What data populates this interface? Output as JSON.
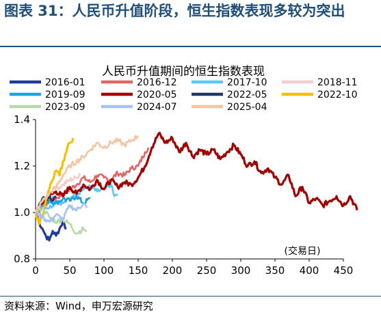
{
  "figure": {
    "title": "图表 31：人民币升值阶段，恒生指数表现多较为突出",
    "source": "资料来源：Wind，申万宏源研究"
  },
  "chart_data": {
    "type": "line",
    "title": "人民币升值期间的恒生指数表现",
    "xlabel": "(交易日)",
    "ylabel": "",
    "xlim": [
      0,
      450
    ],
    "ylim": [
      0.8,
      1.4
    ],
    "xticks": [
      "0",
      "50",
      "100",
      "150",
      "200",
      "250",
      "300",
      "350",
      "400",
      "450"
    ],
    "yticks": [
      "0.8",
      "1.0",
      "1.2",
      "1.4"
    ],
    "grid": false,
    "legend_position": "top",
    "series": [
      {
        "name": "2016-01",
        "color": "#1f3c99",
        "points": [
          [
            0,
            1.0
          ],
          [
            5,
            0.96
          ],
          [
            10,
            0.93
          ],
          [
            15,
            0.9
          ],
          [
            20,
            0.88
          ],
          [
            25,
            0.92
          ],
          [
            30,
            0.9
          ],
          [
            35,
            0.93
          ],
          [
            40,
            0.96
          ],
          [
            45,
            0.93
          ]
        ]
      },
      {
        "name": "2016-12",
        "color": "#e06666",
        "points": [
          [
            0,
            1.0
          ],
          [
            10,
            1.02
          ],
          [
            20,
            1.05
          ],
          [
            30,
            1.06
          ],
          [
            40,
            1.08
          ],
          [
            50,
            1.1
          ],
          [
            60,
            1.12
          ],
          [
            70,
            1.15
          ],
          [
            80,
            1.13
          ],
          [
            90,
            1.16
          ],
          [
            100,
            1.15
          ],
          [
            110,
            1.14
          ],
          [
            120,
            1.17
          ],
          [
            130,
            1.16
          ],
          [
            140,
            1.19
          ],
          [
            150,
            1.2
          ],
          [
            160,
            1.26
          ],
          [
            165,
            1.28
          ]
        ]
      },
      {
        "name": "2017-10",
        "color": "#5bc8f5",
        "points": [
          [
            0,
            1.0
          ],
          [
            10,
            1.03
          ],
          [
            20,
            1.02
          ],
          [
            30,
            1.05
          ],
          [
            40,
            1.04
          ],
          [
            50,
            1.06
          ],
          [
            60,
            1.08
          ],
          [
            70,
            1.1
          ],
          [
            80,
            1.11
          ],
          [
            90,
            1.09
          ],
          [
            100,
            1.1
          ],
          [
            110,
            1.12
          ],
          [
            115,
            1.07
          ],
          [
            120,
            1.08
          ]
        ]
      },
      {
        "name": "2018-11",
        "color": "#f4cccc",
        "points": [
          [
            0,
            1.0
          ],
          [
            10,
            1.04
          ],
          [
            20,
            1.07
          ],
          [
            30,
            1.1
          ],
          [
            40,
            1.12
          ],
          [
            50,
            1.14
          ],
          [
            60,
            1.15
          ],
          [
            65,
            1.17
          ]
        ]
      },
      {
        "name": "2019-09",
        "color": "#1aa3dc",
        "points": [
          [
            0,
            1.0
          ],
          [
            10,
            1.03
          ],
          [
            20,
            1.05
          ],
          [
            30,
            1.04
          ],
          [
            40,
            1.06
          ],
          [
            50,
            1.05
          ],
          [
            60,
            1.07
          ],
          [
            70,
            1.04
          ],
          [
            80,
            1.06
          ]
        ]
      },
      {
        "name": "2020-05",
        "color": "#a00000",
        "points": [
          [
            0,
            1.0
          ],
          [
            10,
            1.04
          ],
          [
            20,
            1.07
          ],
          [
            30,
            1.09
          ],
          [
            40,
            1.07
          ],
          [
            50,
            1.11
          ],
          [
            60,
            1.08
          ],
          [
            70,
            1.12
          ],
          [
            80,
            1.1
          ],
          [
            90,
            1.14
          ],
          [
            100,
            1.1
          ],
          [
            110,
            1.14
          ],
          [
            120,
            1.11
          ],
          [
            130,
            1.13
          ],
          [
            140,
            1.12
          ],
          [
            150,
            1.15
          ],
          [
            160,
            1.2
          ],
          [
            170,
            1.28
          ],
          [
            180,
            1.34
          ],
          [
            190,
            1.3
          ],
          [
            200,
            1.32
          ],
          [
            210,
            1.26
          ],
          [
            220,
            1.3
          ],
          [
            230,
            1.24
          ],
          [
            240,
            1.27
          ],
          [
            250,
            1.25
          ],
          [
            260,
            1.27
          ],
          [
            270,
            1.23
          ],
          [
            280,
            1.26
          ],
          [
            290,
            1.29
          ],
          [
            300,
            1.25
          ],
          [
            310,
            1.2
          ],
          [
            320,
            1.22
          ],
          [
            330,
            1.17
          ],
          [
            340,
            1.19
          ],
          [
            350,
            1.15
          ],
          [
            360,
            1.12
          ],
          [
            370,
            1.16
          ],
          [
            380,
            1.07
          ],
          [
            390,
            1.11
          ],
          [
            400,
            1.04
          ],
          [
            410,
            1.06
          ],
          [
            420,
            1.03
          ],
          [
            430,
            1.05
          ],
          [
            440,
            1.07
          ],
          [
            450,
            1.03
          ],
          [
            460,
            1.07
          ],
          [
            470,
            1.01
          ]
        ]
      },
      {
        "name": "2022-05",
        "color": "#203864",
        "points": [
          [
            0,
            1.0
          ],
          [
            5,
            1.03
          ],
          [
            10,
            1.06
          ],
          [
            15,
            1.05
          ],
          [
            20,
            1.08
          ],
          [
            25,
            1.05
          ],
          [
            30,
            1.07
          ]
        ]
      },
      {
        "name": "2022-10",
        "color": "#f5c000",
        "points": [
          [
            0,
            1.0
          ],
          [
            5,
            0.95
          ],
          [
            10,
            0.98
          ],
          [
            15,
            1.05
          ],
          [
            20,
            1.1
          ],
          [
            25,
            1.14
          ],
          [
            30,
            1.18
          ],
          [
            35,
            1.16
          ],
          [
            40,
            1.22
          ],
          [
            45,
            1.26
          ],
          [
            50,
            1.3
          ],
          [
            55,
            1.32
          ]
        ]
      },
      {
        "name": "2023-09",
        "color": "#b6d7a8",
        "points": [
          [
            0,
            1.0
          ],
          [
            10,
            1.02
          ],
          [
            20,
            0.98
          ],
          [
            30,
            0.96
          ],
          [
            40,
            0.97
          ],
          [
            50,
            0.95
          ],
          [
            60,
            0.91
          ],
          [
            70,
            0.93
          ],
          [
            75,
            0.92
          ]
        ]
      },
      {
        "name": "2024-07",
        "color": "#a4c2f4",
        "points": [
          [
            0,
            1.0
          ],
          [
            10,
            0.98
          ],
          [
            20,
            0.96
          ],
          [
            30,
            0.99
          ],
          [
            40,
            0.97
          ],
          [
            50,
            1.03
          ],
          [
            60,
            1.01
          ],
          [
            70,
            1.04
          ],
          [
            75,
            1.02
          ]
        ]
      },
      {
        "name": "2025-04",
        "color": "#f5c4a0",
        "points": [
          [
            0,
            1.0
          ],
          [
            10,
            1.05
          ],
          [
            20,
            1.08
          ],
          [
            30,
            1.11
          ],
          [
            40,
            1.16
          ],
          [
            50,
            1.2
          ],
          [
            60,
            1.22
          ],
          [
            70,
            1.24
          ],
          [
            80,
            1.27
          ],
          [
            90,
            1.3
          ],
          [
            100,
            1.28
          ],
          [
            110,
            1.3
          ],
          [
            120,
            1.31
          ],
          [
            130,
            1.29
          ],
          [
            140,
            1.31
          ],
          [
            150,
            1.33
          ]
        ]
      }
    ]
  }
}
